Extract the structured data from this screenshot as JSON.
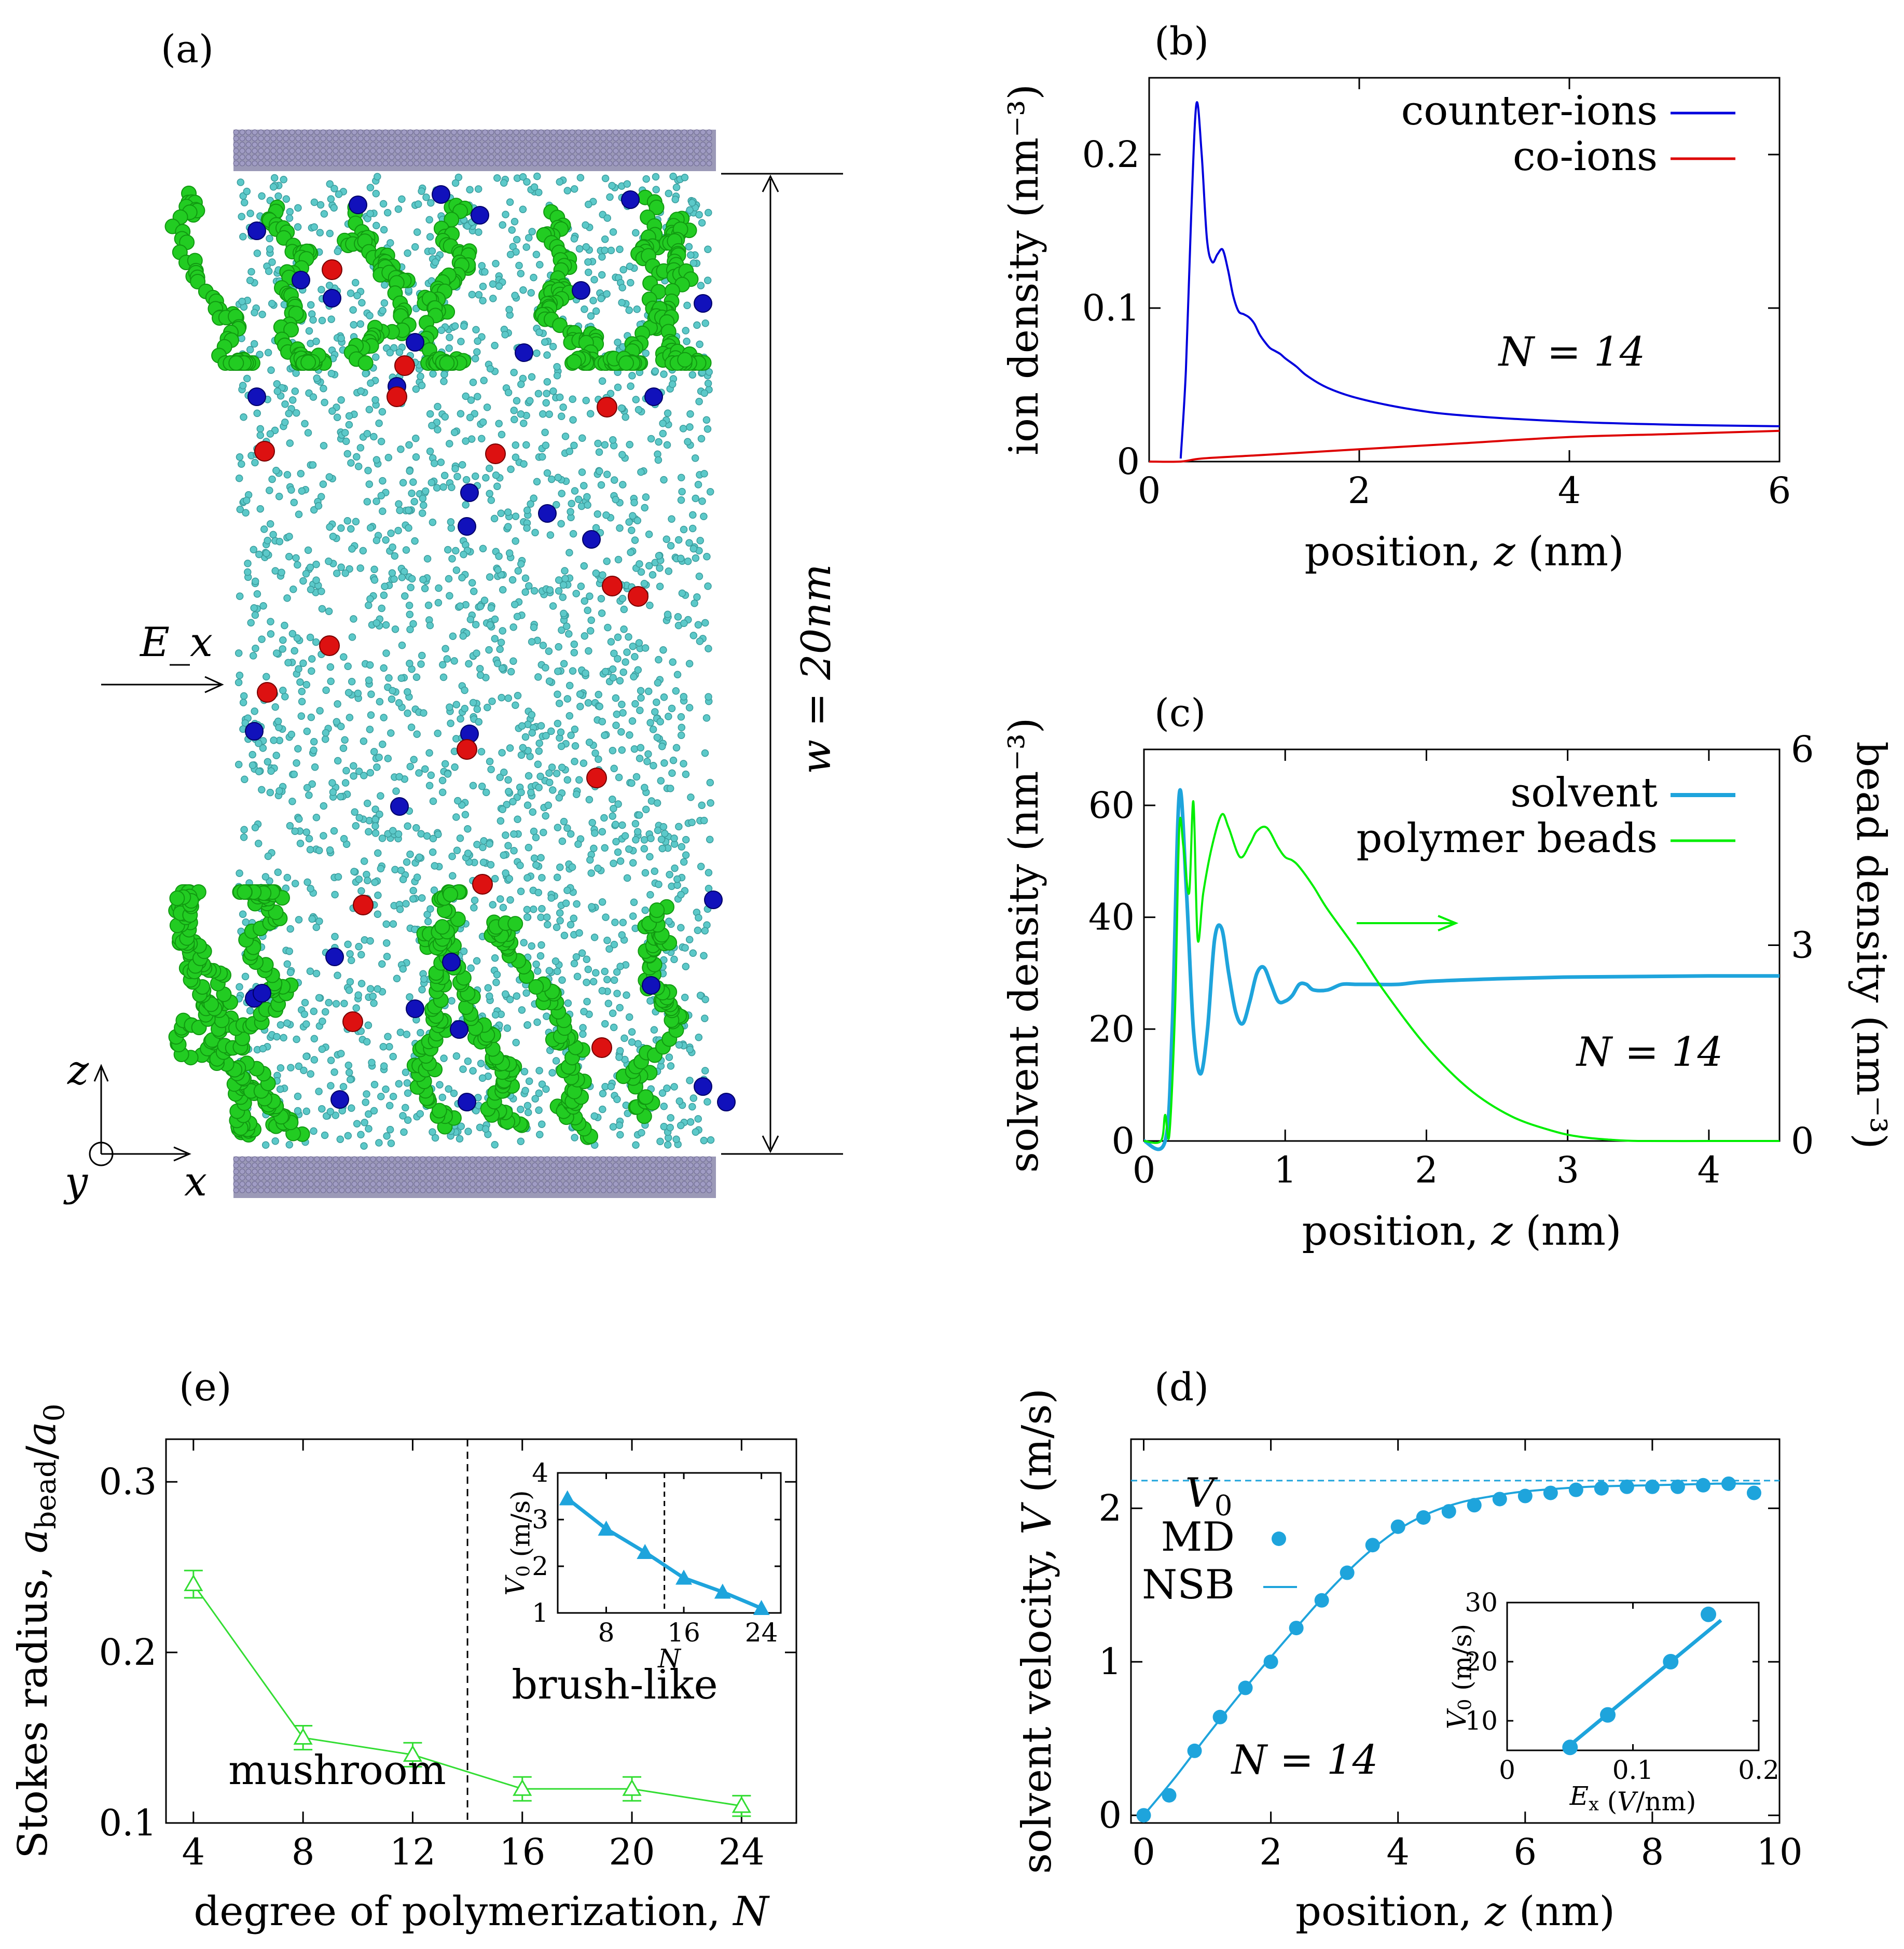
{
  "colors": {
    "counter_ions": "#0000dd",
    "co_ions": "#dd0000",
    "solvent": "#1ea4dc",
    "beads": "#00ee00",
    "stokes": "#33dd33",
    "wall": "#8a87aa",
    "solvent_particle": "#5cc9c9",
    "chain": "#22cc22",
    "counter_particle": "#1111bb",
    "co_particle": "#dd1111"
  },
  "panel_a": {
    "label": "(a)",
    "field_label": "E_x",
    "width_label": "w = 20nm",
    "axis_z": "z",
    "axis_x": "x",
    "axis_y": "y"
  },
  "chart_data": [
    {
      "id": "b",
      "panel_label": "(b)",
      "type": "line",
      "xlabel": "position, z (nm)",
      "ylabel": "ion density (nm⁻³)",
      "xlim": [
        0,
        6
      ],
      "ylim": [
        0,
        0.25
      ],
      "xticks": [
        0,
        2,
        4,
        6
      ],
      "xtick_labels": [
        "0",
        "2",
        "4",
        "6"
      ],
      "yticks": [
        0,
        0.1,
        0.2
      ],
      "ytick_labels": [
        "0",
        "0.1",
        "0.2"
      ],
      "annotation": "N = 14",
      "legend": "top-right",
      "series": [
        {
          "name": "counter-ions",
          "color": "#0000dd",
          "x": [
            0.3,
            0.35,
            0.4,
            0.45,
            0.5,
            0.55,
            0.6,
            0.65,
            0.7,
            0.75,
            0.8,
            0.85,
            0.9,
            0.95,
            1.0,
            1.05,
            1.1,
            1.15,
            1.2,
            1.25,
            1.3,
            1.4,
            1.5,
            1.7,
            2.0,
            2.5,
            3.0,
            4.0,
            5.0,
            6.0
          ],
          "y": [
            0.002,
            0.06,
            0.16,
            0.233,
            0.2,
            0.145,
            0.13,
            0.135,
            0.138,
            0.125,
            0.108,
            0.098,
            0.096,
            0.094,
            0.09,
            0.083,
            0.078,
            0.074,
            0.072,
            0.07,
            0.067,
            0.062,
            0.056,
            0.048,
            0.041,
            0.034,
            0.03,
            0.026,
            0.024,
            0.023
          ]
        },
        {
          "name": "co-ions",
          "color": "#dd0000",
          "x": [
            0,
            0.3,
            0.5,
            1.0,
            2.0,
            3.0,
            4.0,
            5.0,
            6.0
          ],
          "y": [
            0,
            0,
            0.002,
            0.004,
            0.008,
            0.012,
            0.016,
            0.018,
            0.02
          ]
        }
      ]
    },
    {
      "id": "c",
      "panel_label": "(c)",
      "type": "line",
      "xlabel": "position, z (nm)",
      "ylabel": "solvent density (nm⁻³)",
      "ylabel_right": "bead density (nm⁻³)",
      "xlim": [
        0,
        4.5
      ],
      "ylim": [
        0,
        70
      ],
      "ylim_right": [
        0,
        6
      ],
      "xticks": [
        0,
        1,
        2,
        3,
        4
      ],
      "xtick_labels": [
        "0",
        "1",
        "2",
        "3",
        "4"
      ],
      "yticks": [
        0,
        20,
        40,
        60
      ],
      "ytick_labels": [
        "0",
        "20",
        "40",
        "60"
      ],
      "yticks_right": [
        0,
        3,
        6
      ],
      "ytick_labels_right": [
        "0",
        "3",
        "6"
      ],
      "annotation": "N = 14",
      "legend": "top-right",
      "series": [
        {
          "name": "solvent",
          "color": "#1ea4dc",
          "axis": "left",
          "x": [
            0,
            0.15,
            0.2,
            0.25,
            0.3,
            0.35,
            0.4,
            0.45,
            0.5,
            0.55,
            0.6,
            0.65,
            0.7,
            0.75,
            0.8,
            0.85,
            0.9,
            0.95,
            1.0,
            1.05,
            1.1,
            1.15,
            1.2,
            1.3,
            1.4,
            1.5,
            1.6,
            1.8,
            2.0,
            2.5,
            3.0,
            3.5,
            4.0,
            4.5
          ],
          "y": [
            0,
            0,
            20,
            62,
            45,
            20,
            12,
            20,
            36,
            38,
            30,
            23,
            21,
            25,
            30,
            31,
            28,
            25,
            25,
            26,
            28,
            28,
            27,
            27,
            28,
            28,
            28,
            28,
            28.5,
            29,
            29.3,
            29.4,
            29.5,
            29.5
          ]
        },
        {
          "name": "polymer beads",
          "color": "#00ee00",
          "axis": "right",
          "x": [
            0,
            0.12,
            0.15,
            0.18,
            0.22,
            0.25,
            0.28,
            0.32,
            0.35,
            0.38,
            0.42,
            0.48,
            0.55,
            0.6,
            0.68,
            0.75,
            0.8,
            0.87,
            0.95,
            1.0,
            1.05,
            1.1,
            1.2,
            1.3,
            1.5,
            1.7,
            2.0,
            2.3,
            2.6,
            2.9,
            3.1,
            3.3,
            3.5,
            4.0,
            4.5
          ],
          "y": [
            0,
            0,
            0.4,
            0.1,
            2.0,
            4.8,
            4.5,
            3.8,
            5.2,
            3.1,
            3.8,
            4.5,
            5.0,
            4.8,
            4.35,
            4.55,
            4.75,
            4.8,
            4.5,
            4.35,
            4.3,
            4.2,
            3.9,
            3.55,
            2.95,
            2.3,
            1.45,
            0.8,
            0.38,
            0.15,
            0.06,
            0.02,
            0.0,
            0.0,
            0.0
          ]
        }
      ]
    },
    {
      "id": "e",
      "panel_label": "(e)",
      "type": "line",
      "xlabel": "degree of polymerization, N",
      "ylabel": "Stokes radius, a_bead/a_0",
      "xlim": [
        3,
        26
      ],
      "ylim": [
        0.1,
        0.325
      ],
      "xticks": [
        4,
        8,
        12,
        16,
        20,
        24
      ],
      "xtick_labels": [
        "4",
        "8",
        "12",
        "16",
        "20",
        "24"
      ],
      "yticks": [
        0.1,
        0.2,
        0.3
      ],
      "ytick_labels": [
        "0.1",
        "0.2",
        "0.3"
      ],
      "divider_x": 14,
      "annotations": [
        "mushroom",
        "brush-like"
      ],
      "series": [
        {
          "name": "Stokes radius",
          "color": "#33dd33",
          "x": [
            4,
            8,
            12,
            16,
            20,
            24
          ],
          "y": [
            0.24,
            0.15,
            0.14,
            0.12,
            0.12,
            0.11
          ],
          "err": [
            0.008,
            0.007,
            0.007,
            0.007,
            0.007,
            0.006
          ]
        }
      ],
      "inset": {
        "xlabel": "N",
        "ylabel": "V_0 (m/s)",
        "xlim": [
          3,
          26
        ],
        "ylim": [
          1,
          4
        ],
        "xticks": [
          8,
          16,
          24
        ],
        "xtick_labels": [
          "8",
          "16",
          "24"
        ],
        "yticks": [
          1,
          2,
          3,
          4
        ],
        "ytick_labels": [
          "1",
          "2",
          "3",
          "4"
        ],
        "divider_x": 14,
        "x": [
          4,
          8,
          12,
          16,
          20,
          24
        ],
        "y": [
          3.45,
          2.8,
          2.3,
          1.75,
          1.45,
          1.1
        ]
      }
    },
    {
      "id": "d",
      "panel_label": "(d)",
      "type": "line",
      "xlabel": "position, z (nm)",
      "ylabel": "solvent velocity, V (m/s)",
      "xlim": [
        -0.2,
        10
      ],
      "ylim": [
        -0.05,
        2.45
      ],
      "xticks": [
        0,
        2,
        4,
        6,
        8,
        10
      ],
      "xtick_labels": [
        "0",
        "2",
        "4",
        "6",
        "8",
        "10"
      ],
      "yticks": [
        0,
        1,
        2
      ],
      "ytick_labels": [
        "0",
        "1",
        "2"
      ],
      "annotation": "N = 14",
      "v0_label": "V_0",
      "v0_value": 2.18,
      "legend": "left",
      "series": [
        {
          "name": "MD",
          "color": "#1ea4dc",
          "style": "points",
          "x": [
            0,
            0.4,
            0.8,
            1.2,
            1.6,
            2.0,
            2.4,
            2.8,
            3.2,
            3.6,
            4.0,
            4.4,
            4.8,
            5.2,
            5.6,
            6.0,
            6.4,
            6.8,
            7.2,
            7.6,
            8.0,
            8.4,
            8.8,
            9.2,
            9.6
          ],
          "y": [
            0,
            0.13,
            0.42,
            0.64,
            0.83,
            1.0,
            1.22,
            1.4,
            1.58,
            1.76,
            1.88,
            1.94,
            1.98,
            2.02,
            2.06,
            2.08,
            2.1,
            2.12,
            2.13,
            2.14,
            2.14,
            2.14,
            2.15,
            2.16,
            2.1
          ]
        },
        {
          "name": "NSB",
          "color": "#1ea4dc",
          "style": "line",
          "x": [
            0,
            0.5,
            1.0,
            1.5,
            2.0,
            2.5,
            3.0,
            3.5,
            4.0,
            4.5,
            5.0,
            5.5,
            6.0,
            7.0,
            8.0,
            9.0,
            9.7
          ],
          "y": [
            0,
            0.25,
            0.52,
            0.78,
            1.03,
            1.27,
            1.5,
            1.7,
            1.86,
            1.97,
            2.04,
            2.08,
            2.11,
            2.14,
            2.15,
            2.16,
            2.16
          ]
        }
      ],
      "inset": {
        "xlabel": "E_x (V/nm)",
        "ylabel": "V_0 (m/s)",
        "xlim": [
          0,
          0.2
        ],
        "ylim": [
          5,
          30
        ],
        "xticks": [
          0,
          0.1,
          0.2
        ],
        "xtick_labels": [
          "0",
          "0.1",
          "0.2"
        ],
        "yticks": [
          10,
          20,
          30
        ],
        "ytick_labels": [
          "10",
          "20",
          "30"
        ],
        "points_x": [
          0.05,
          0.08,
          0.13,
          0.16
        ],
        "points_y": [
          5.5,
          11,
          20,
          28
        ],
        "line_x": [
          0.045,
          0.17
        ],
        "line_y": [
          5.0,
          27.0
        ]
      }
    }
  ]
}
